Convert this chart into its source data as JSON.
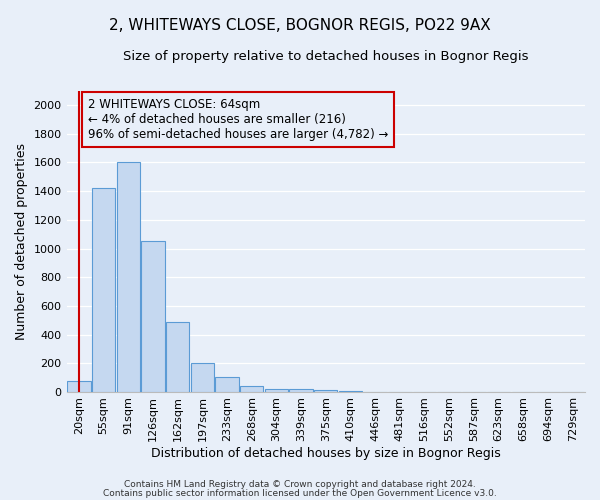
{
  "title": "2, WHITEWAYS CLOSE, BOGNOR REGIS, PO22 9AX",
  "subtitle": "Size of property relative to detached houses in Bognor Regis",
  "xlabel": "Distribution of detached houses by size in Bognor Regis",
  "ylabel": "Number of detached properties",
  "footnote1": "Contains HM Land Registry data © Crown copyright and database right 2024.",
  "footnote2": "Contains public sector information licensed under the Open Government Licence v3.0.",
  "bin_labels": [
    "20sqm",
    "55sqm",
    "91sqm",
    "126sqm",
    "162sqm",
    "197sqm",
    "233sqm",
    "268sqm",
    "304sqm",
    "339sqm",
    "375sqm",
    "410sqm",
    "446sqm",
    "481sqm",
    "516sqm",
    "552sqm",
    "587sqm",
    "623sqm",
    "658sqm",
    "694sqm",
    "729sqm"
  ],
  "bar_values": [
    80,
    1420,
    1600,
    1050,
    490,
    205,
    105,
    40,
    25,
    20,
    15,
    10,
    0,
    0,
    0,
    0,
    0,
    0,
    0,
    0,
    0
  ],
  "bar_color": "#c5d8f0",
  "bar_edge_color": "#5b9bd5",
  "red_line_x": 0,
  "annotation_text": "2 WHITEWAYS CLOSE: 64sqm\n← 4% of detached houses are smaller (216)\n96% of semi-detached houses are larger (4,782) →",
  "annotation_box_edge": "#cc0000",
  "ylim": [
    0,
    2100
  ],
  "yticks": [
    0,
    200,
    400,
    600,
    800,
    1000,
    1200,
    1400,
    1600,
    1800,
    2000
  ],
  "bg_color": "#e8eff9",
  "grid_color": "#ffffff",
  "title_fontsize": 11,
  "subtitle_fontsize": 9.5,
  "axis_label_fontsize": 9,
  "tick_fontsize": 8,
  "annot_fontsize": 8.5
}
